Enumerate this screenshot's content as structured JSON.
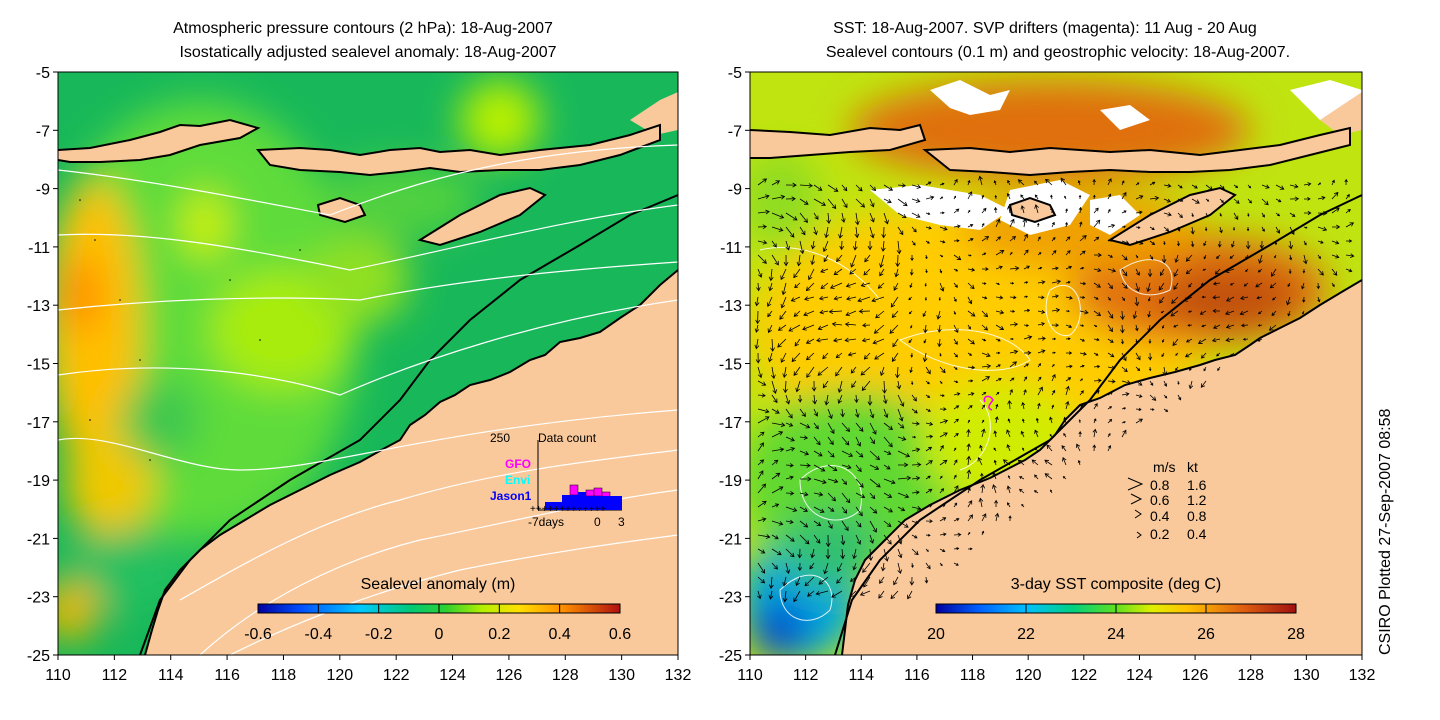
{
  "left": {
    "title_line1": "Atmospheric pressure contours (2 hPa): 18-Aug-2007",
    "title_line2": "Isostatically adjusted sealevel anomaly: 18-Aug-2007",
    "colorbar_label": "Sealevel anomaly (m)",
    "colorbar_ticks": [
      "-0.6",
      "-0.4",
      "-0.2",
      "0",
      "0.2",
      "0.4",
      "0.6"
    ],
    "colorbar_range": [
      -0.6,
      0.6
    ],
    "data_count": {
      "label": "Data count",
      "max_label": "250",
      "x_axis_labels": [
        "-7days",
        "0",
        "3"
      ],
      "satellites": [
        {
          "name": "GFO",
          "color": "#ff00ff"
        },
        {
          "name": "Envi",
          "color": "#00ffff"
        },
        {
          "name": "Jason1",
          "color": "#0000ff"
        }
      ]
    }
  },
  "right": {
    "title_line1": "SST: 18-Aug-2007. SVP drifters (magenta): 11 Aug - 20 Aug",
    "title_line2": "Sealevel contours (0.1 m) and geostrophic velocity: 18-Aug-2007.",
    "colorbar_label": "3-day SST composite (deg C)",
    "colorbar_ticks": [
      "20",
      "22",
      "24",
      "26",
      "28"
    ],
    "colorbar_range": [
      20,
      28
    ],
    "velocity_legend": {
      "header_ms": "m/s",
      "header_kt": "kt",
      "rows": [
        {
          "ms": "0.8",
          "kt": "1.6"
        },
        {
          "ms": "0.6",
          "kt": "1.2"
        },
        {
          "ms": "0.4",
          "kt": "0.8"
        },
        {
          "ms": "0.2",
          "kt": "0.4"
        }
      ]
    },
    "credit": "CSIRO Plotted 27-Sep-2007 08:58"
  },
  "axes": {
    "lat_ticks": [
      "-5",
      "-7",
      "-9",
      "-11",
      "-13",
      "-15",
      "-17",
      "-19",
      "-21",
      "-23",
      "-25"
    ],
    "lon_ticks": [
      "110",
      "112",
      "114",
      "116",
      "118",
      "120",
      "122",
      "124",
      "126",
      "128",
      "130",
      "132"
    ],
    "lat_range": [
      -25,
      -5
    ],
    "lon_range": [
      110,
      132
    ]
  },
  "colors": {
    "land": "#f9c99b",
    "coast": "#000000",
    "contour": "#ffffff",
    "drifter": "#ff00ff"
  }
}
